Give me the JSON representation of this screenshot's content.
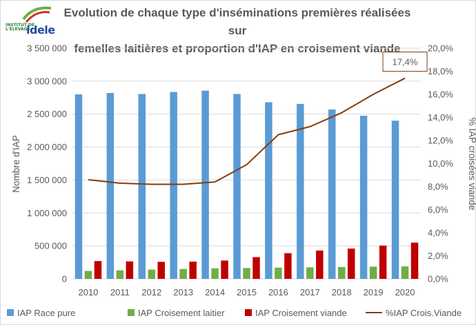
{
  "title_line1": "Evolution de chaque type d'inséminations premières réalisées sur",
  "title_line2": "femelles laitières et proportion d'IAP en croisement viande",
  "logo": {
    "small_text_1": "INSTITUT DE",
    "small_text_2": "L'ÉLEVAGE",
    "word": "idele",
    "colors": {
      "green": "#2e7d32",
      "red": "#d32f2f",
      "blue": "#1f4e9c"
    }
  },
  "colors": {
    "race_pure": "#5b9bd5",
    "croisement_laitier": "#70ad47",
    "croisement_viande": "#c00000",
    "line": "#843c0c",
    "grid": "#d9d9d9",
    "text": "#595959"
  },
  "chart_data": {
    "type": "bar",
    "title": "Evolution de chaque type d'inséminations premières réalisées sur femelles laitières et proportion d'IAP en croisement viande",
    "ylabel": "Nombre d'IAP",
    "y2label": "% IAP croisées viande",
    "ylim": [
      0,
      3500000
    ],
    "y2lim": [
      0,
      0.2
    ],
    "yticks": [
      "0",
      "500 000",
      "1 000 000",
      "1 500 000",
      "2 000 000",
      "2 500 000",
      "3 000 000",
      "3 500 000"
    ],
    "y2ticks": [
      "0,0%",
      "2,0%",
      "4,0%",
      "6,0%",
      "8,0%",
      "10,0%",
      "12,0%",
      "14,0%",
      "16,0%",
      "18,0%",
      "20,0%"
    ],
    "categories": [
      "2010",
      "2011",
      "2012",
      "2013",
      "2014",
      "2015",
      "2016",
      "2017",
      "2018",
      "2019",
      "2020"
    ],
    "series": [
      {
        "name": "IAP Race pure",
        "type": "bar",
        "axis": "left",
        "values": [
          2800000,
          2820000,
          2805000,
          2835000,
          2855000,
          2805000,
          2680000,
          2655000,
          2570000,
          2475000,
          2400000
        ]
      },
      {
        "name": "IAP Croisement laitier",
        "type": "bar",
        "axis": "left",
        "values": [
          120000,
          130000,
          140000,
          150000,
          160000,
          165000,
          170000,
          175000,
          180000,
          185000,
          190000
        ]
      },
      {
        "name": "IAP Croisement viande",
        "type": "bar",
        "axis": "left",
        "values": [
          270000,
          265000,
          258000,
          262000,
          278000,
          330000,
          390000,
          430000,
          460000,
          505000,
          550000
        ]
      },
      {
        "name": "%IAP Crois.Viande",
        "type": "line",
        "axis": "right",
        "values": [
          0.086,
          0.083,
          0.082,
          0.082,
          0.084,
          0.099,
          0.125,
          0.132,
          0.144,
          0.16,
          0.174
        ]
      }
    ],
    "annotation": {
      "text": "17,4%",
      "category": "2020"
    },
    "grid": true,
    "legend_position": "bottom"
  }
}
